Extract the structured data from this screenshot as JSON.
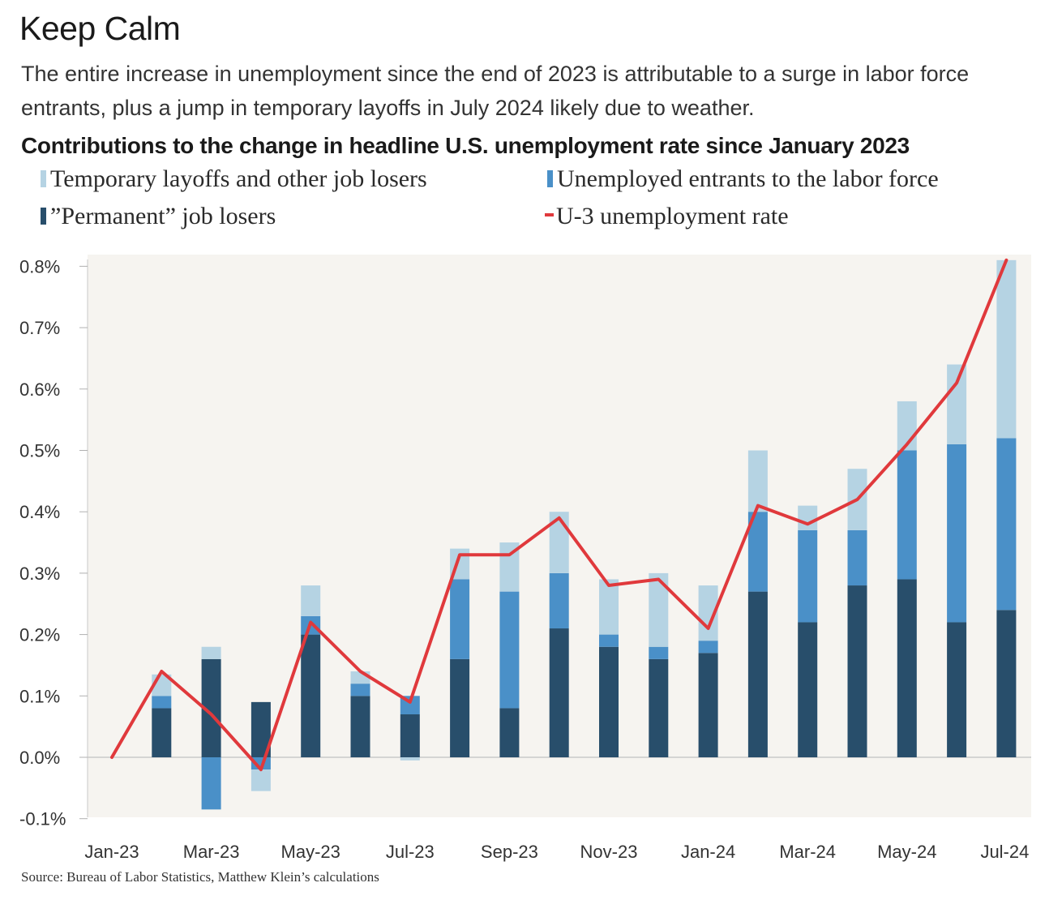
{
  "title": "Keep Calm",
  "subtitle": "The entire increase in unemployment since the end of 2023 is attributable to a surge in labor force entrants, plus a jump in temporary layoffs in July 2024 likely due to weather.",
  "source": "Source: Bureau of Labor Statistics, Matthew Klein’s calculations",
  "legend": {
    "temporary": "Temporary layoffs and other job losers",
    "entrants": "Unemployed entrants to the labor force",
    "permanent": "”Permanent” job losers",
    "u3": "U-3 unemployment rate"
  },
  "colors": {
    "temporary": "#b5d3e3",
    "entrants": "#4a90c8",
    "permanent": "#284e6b",
    "u3": "#e0393c",
    "plot_bg": "#f6f4f0"
  },
  "chart_data": {
    "type": "bar",
    "stacked": true,
    "title": "Contributions to the change in headline U.S. unemployment rate since January 2023",
    "xlabel": "",
    "ylabel": "",
    "ylim": [
      -0.1,
      0.8
    ],
    "yticks": [
      -0.1,
      0.0,
      0.1,
      0.2,
      0.3,
      0.4,
      0.5,
      0.6,
      0.7,
      0.8
    ],
    "ytick_labels": [
      "-0.1%",
      "0.0%",
      "0.1%",
      "0.2%",
      "0.3%",
      "0.4%",
      "0.5%",
      "0.6%",
      "0.7%",
      "0.8%"
    ],
    "categories": [
      "Jan-23",
      "Feb-23",
      "Mar-23",
      "Apr-23",
      "May-23",
      "Jun-23",
      "Jul-23",
      "Aug-23",
      "Sep-23",
      "Oct-23",
      "Nov-23",
      "Dec-23",
      "Jan-24",
      "Feb-24",
      "Mar-24",
      "Apr-24",
      "May-24",
      "Jun-24",
      "Jul-24"
    ],
    "xtick_labels": [
      "Jan-23",
      "",
      "Mar-23",
      "",
      "May-23",
      "",
      "Jul-23",
      "",
      "Sep-23",
      "",
      "Nov-23",
      "",
      "Jan-24",
      "",
      "Mar-24",
      "",
      "May-24",
      "",
      "Jul-24"
    ],
    "series": [
      {
        "name": "”Permanent” job losers",
        "key": "permanent",
        "type": "bar",
        "values": [
          0,
          0.08,
          0.16,
          0.09,
          0.2,
          0.1,
          0.07,
          0.16,
          0.08,
          0.21,
          0.18,
          0.16,
          0.17,
          0.27,
          0.22,
          0.28,
          0.29,
          0.22,
          0.24
        ]
      },
      {
        "name": "Unemployed entrants to the labor force",
        "key": "entrants",
        "type": "bar",
        "values": [
          0,
          0.02,
          -0.085,
          -0.02,
          0.03,
          0.02,
          0.03,
          0.13,
          0.19,
          0.09,
          0.02,
          0.02,
          0.02,
          0.13,
          0.15,
          0.09,
          0.21,
          0.29,
          0.28
        ]
      },
      {
        "name": "Temporary layoffs and other job losers",
        "key": "temporary",
        "type": "bar",
        "values": [
          0,
          0.035,
          0.02,
          -0.035,
          0.05,
          0.02,
          -0.005,
          0.05,
          0.08,
          0.1,
          0.09,
          0.12,
          0.09,
          0.1,
          0.04,
          0.1,
          0.08,
          0.13,
          0.29
        ]
      },
      {
        "name": "U-3 unemployment rate",
        "key": "u3",
        "type": "line",
        "values": [
          0.0,
          0.14,
          0.07,
          -0.02,
          0.22,
          0.14,
          0.09,
          0.33,
          0.33,
          0.39,
          0.28,
          0.29,
          0.21,
          0.41,
          0.38,
          0.42,
          0.51,
          0.61,
          0.81
        ]
      }
    ],
    "grid": false,
    "legend_position": "top"
  }
}
